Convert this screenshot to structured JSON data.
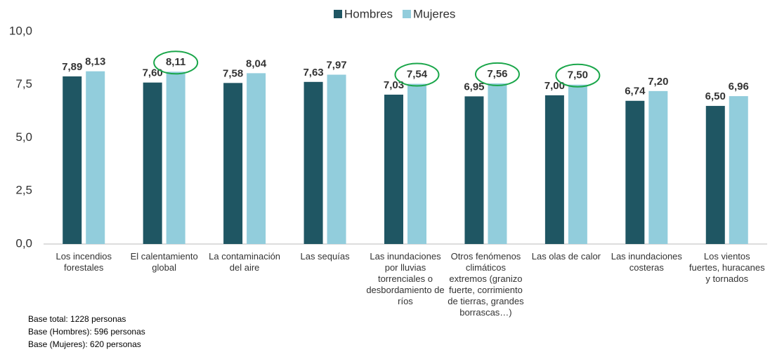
{
  "chart_data": {
    "type": "bar",
    "categories": [
      "Los incendios forestales",
      "El calentamiento global",
      "La contaminación del aire",
      "Las sequías",
      "Las inundaciones por lluvias torrenciales o desbordamiento de ríos",
      "Otros fenómenos climáticos extremos (granizo fuerte, corrimiento de tierras, grandes borrascas…)",
      "Las olas de calor",
      "Las inundaciones costeras",
      "Los vientos fuertes, huracanes y tornados"
    ],
    "series": [
      {
        "name": "Hombres",
        "color": "#1f5663",
        "values": [
          7.89,
          7.6,
          7.58,
          7.63,
          7.03,
          6.95,
          7.0,
          6.74,
          6.5
        ],
        "value_labels": [
          "7,89",
          "7,60",
          "7,58",
          "7,63",
          "7,03",
          "6,95",
          "7,00",
          "6,74",
          "6,50"
        ]
      },
      {
        "name": "Mujeres",
        "color": "#92cddc",
        "values": [
          8.13,
          8.11,
          8.04,
          7.97,
          7.54,
          7.56,
          7.5,
          7.2,
          6.96
        ],
        "value_labels": [
          "8,13",
          "8,11",
          "8,04",
          "7,97",
          "7,54",
          "7,56",
          "7,50",
          "7,20",
          "6,96"
        ],
        "highlight": [
          false,
          true,
          false,
          false,
          true,
          true,
          true,
          false,
          false
        ],
        "highlight_color": "#1aa64a"
      }
    ],
    "ylim": [
      0,
      10
    ],
    "yticks": [
      {
        "value": 0,
        "label": "0,0"
      },
      {
        "value": 2.5,
        "label": "2,5"
      },
      {
        "value": 5,
        "label": "5,0"
      },
      {
        "value": 7.5,
        "label": "7,5"
      },
      {
        "value": 10,
        "label": "10,0"
      }
    ],
    "grid": false,
    "legend": "top",
    "notes": [
      "Base total: 1228 personas",
      "Base (Hombres): 596 personas",
      "Base (Mujeres): 620 personas"
    ]
  }
}
